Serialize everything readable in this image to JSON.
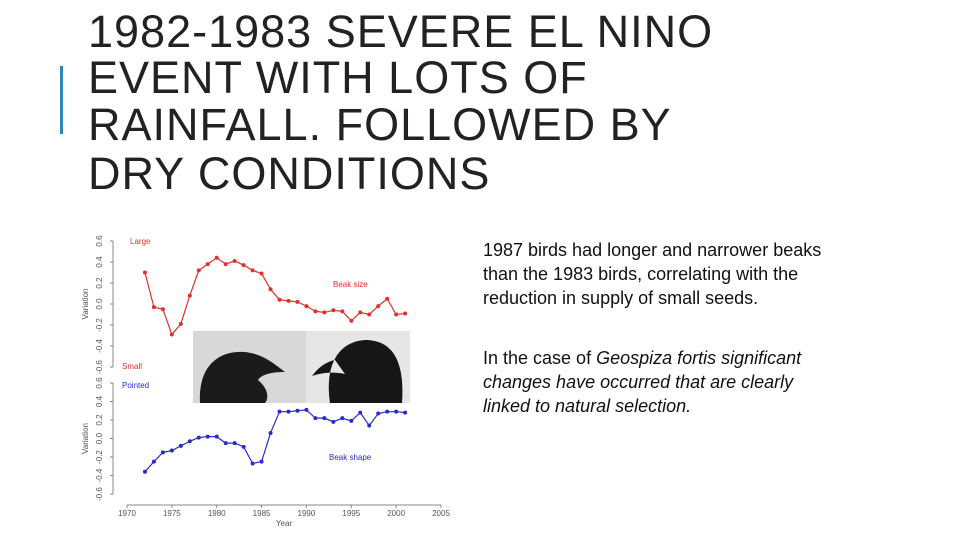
{
  "title_lines": [
    "1982-1983  SEVERE EL NINO",
    "EVENT WITH LOTS OF",
    "RAINFALL.  FOLLOWED BY",
    "DRY CONDITIONS"
  ],
  "paragraphs": [
    [
      "1987 birds had longer and narrower beaks than the 1983 birds, correlating with the reduction in supply of small seeds."
    ],
    [
      "In the case of ",
      "Geospiza fortis significant changes have occurred that are clearly linked to natural selection."
    ]
  ],
  "chart_data": [
    {
      "type": "line",
      "ylabel": "Variation",
      "annotations": [
        "Large",
        "Small",
        "Beak size"
      ],
      "xlim": [
        1970,
        2005
      ],
      "x": [
        1972,
        1973,
        1974,
        1975,
        1976,
        1977,
        1978,
        1979,
        1980,
        1981,
        1982,
        1983,
        1984,
        1985,
        1986,
        1987,
        1988,
        1989,
        1990,
        1991,
        1992,
        1993,
        1994,
        1995,
        1996,
        1997,
        1998,
        1999,
        2000,
        2001
      ],
      "series": [
        {
          "color": "#e0302a",
          "values": [
            0.3,
            -0.03,
            -0.05,
            -0.29,
            -0.19,
            0.08,
            0.32,
            0.38,
            0.44,
            0.38,
            0.41,
            0.37,
            0.32,
            0.29,
            0.14,
            0.04,
            0.03,
            0.02,
            -0.02,
            -0.07,
            -0.08,
            -0.06,
            -0.07,
            -0.16,
            -0.08,
            -0.1,
            -0.02,
            0.05,
            -0.1,
            -0.09
          ]
        }
      ],
      "ylim": [
        -0.6,
        0.6
      ],
      "yticks": [
        -0.6,
        -0.4,
        -0.2,
        {
          "value": 0,
          "label": "0.0"
        },
        0.2,
        0.4,
        0.6
      ]
    },
    {
      "type": "line",
      "ylabel": "Variation",
      "xlabel": "Year",
      "annotations": [
        "Pointed",
        "Beak shape"
      ],
      "xlim": [
        1970,
        2005
      ],
      "xticks": [
        1970,
        1975,
        1980,
        1985,
        1990,
        1995,
        2000,
        2005
      ],
      "x": [
        1972,
        1973,
        1974,
        1975,
        1976,
        1977,
        1978,
        1979,
        1980,
        1981,
        1982,
        1983,
        1984,
        1985,
        1986,
        1987,
        1988,
        1989,
        1990,
        1991,
        1992,
        1993,
        1994,
        1995,
        1996,
        1997,
        1998,
        1999,
        2000,
        2001
      ],
      "series": [
        {
          "color": "#2a2acc",
          "values": [
            -0.36,
            -0.25,
            -0.15,
            -0.13,
            -0.08,
            -0.03,
            0.01,
            0.02,
            0.02,
            -0.05,
            -0.05,
            -0.09,
            -0.27,
            -0.25,
            0.06,
            0.29,
            0.29,
            0.3,
            0.31,
            0.22,
            0.22,
            0.18,
            0.22,
            0.19,
            0.28,
            0.14,
            0.27,
            0.29,
            0.29,
            0.28
          ]
        }
      ],
      "ylim": [
        -0.6,
        0.6
      ],
      "yticks": [
        -0.6,
        -0.4,
        -0.2,
        {
          "value": 0,
          "label": "0.0"
        },
        0.2,
        0.4,
        0.6
      ]
    }
  ]
}
